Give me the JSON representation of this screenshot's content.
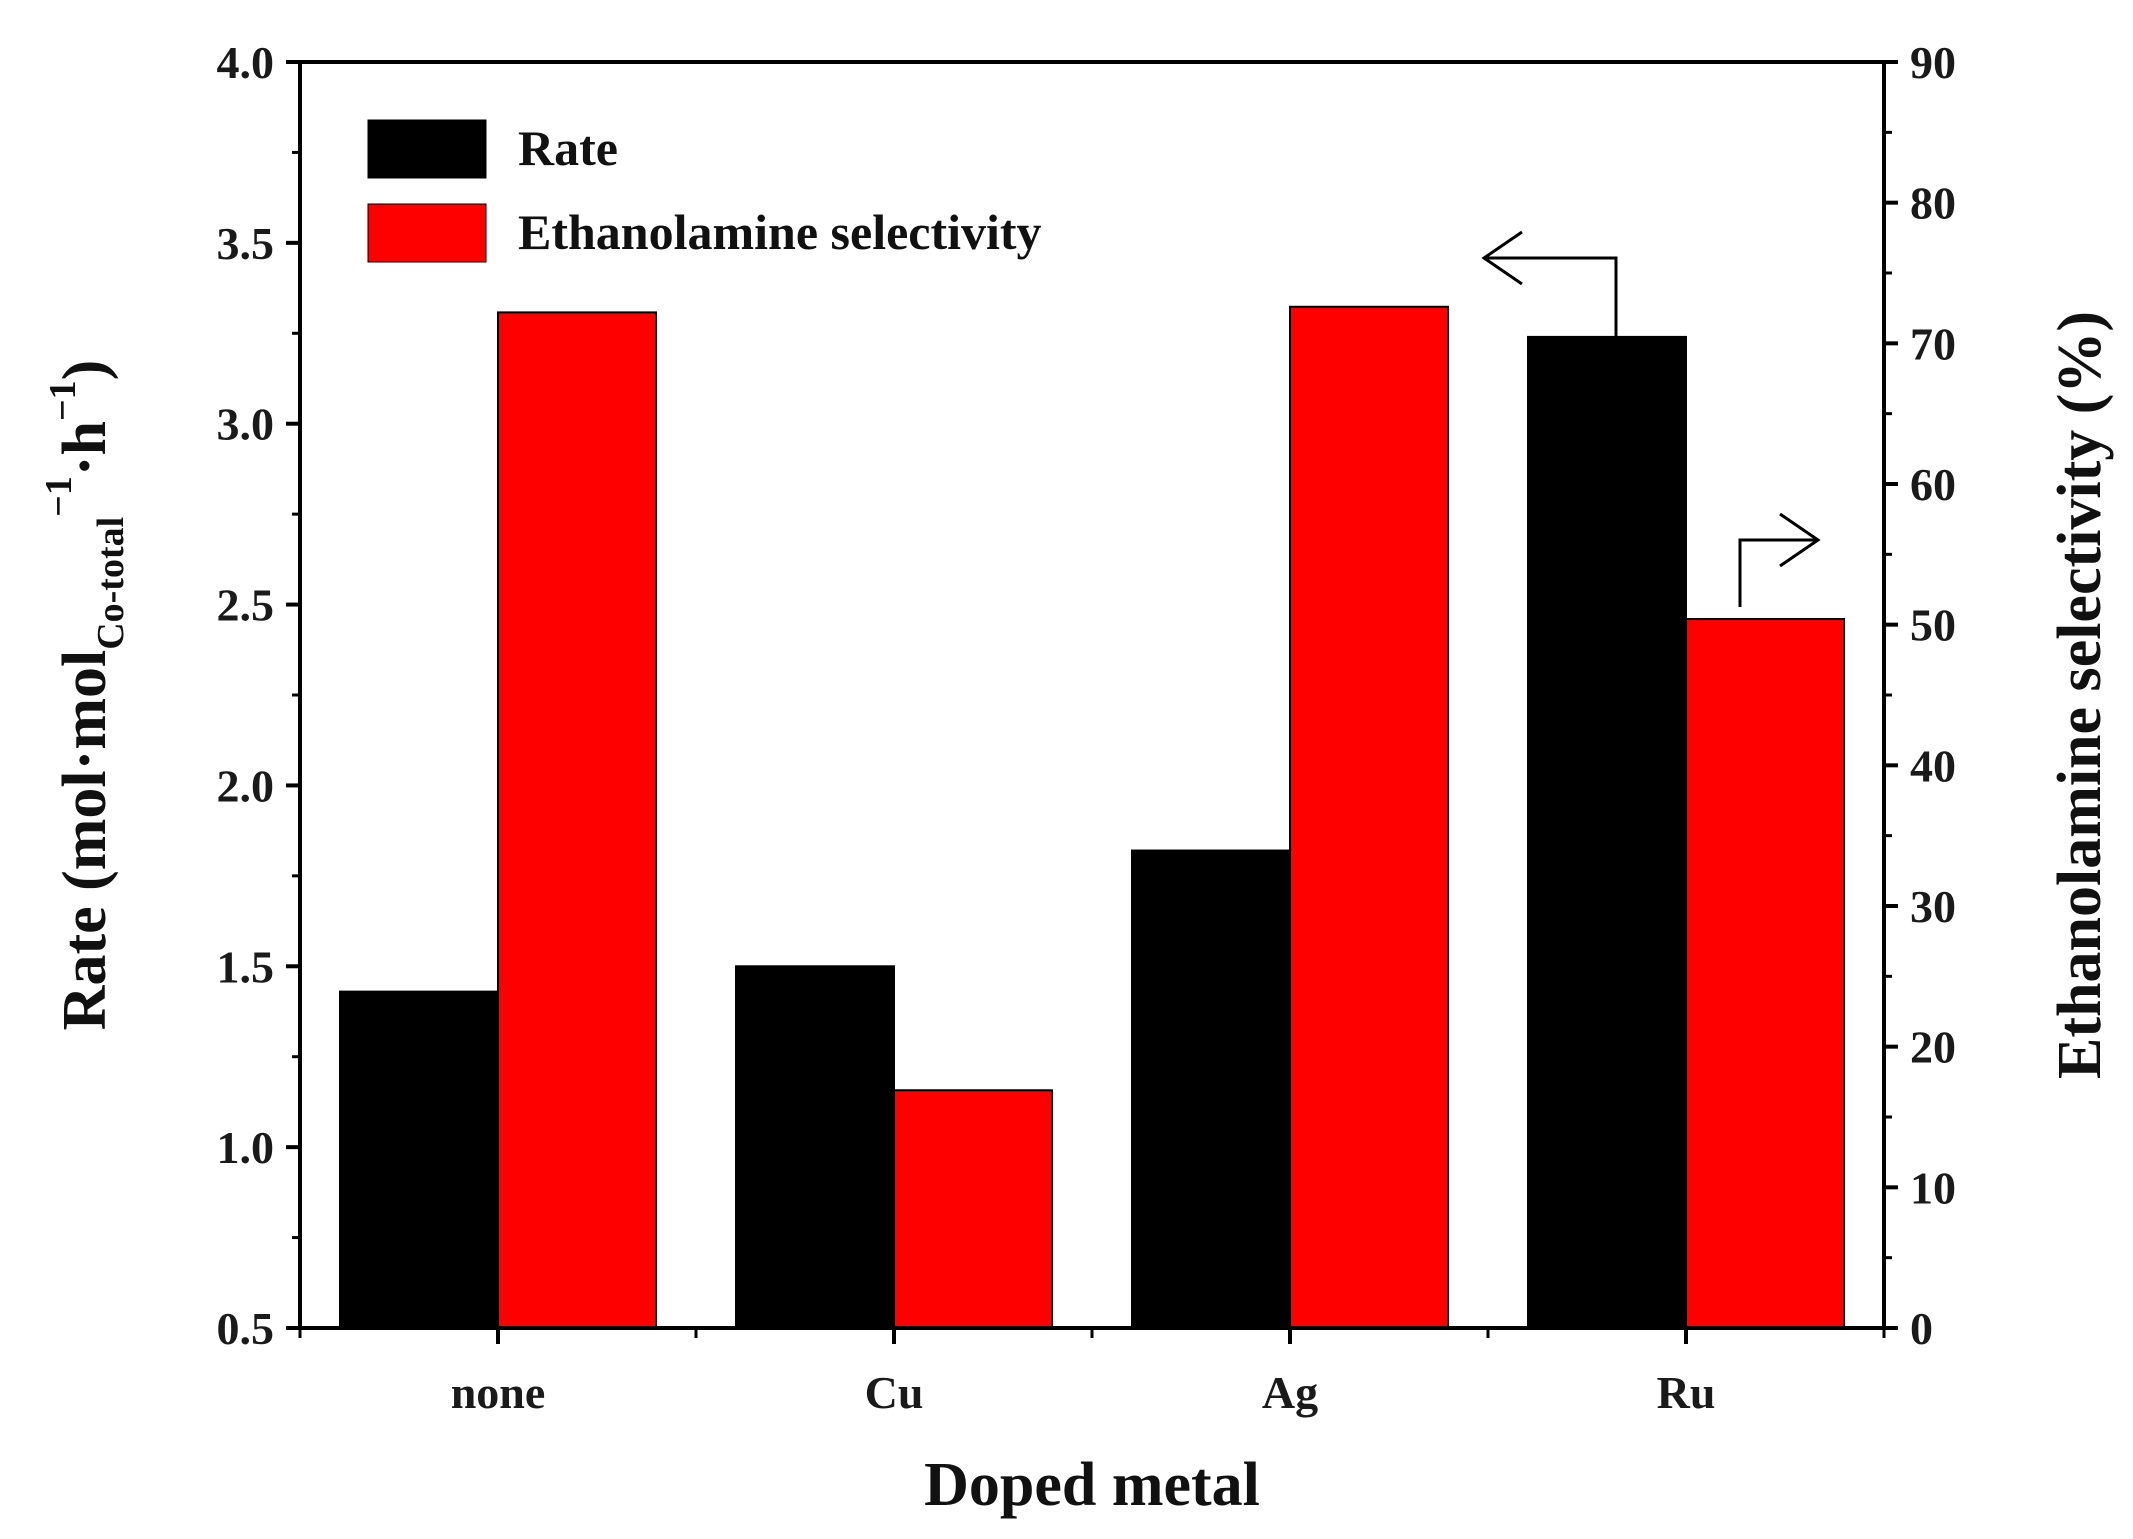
{
  "chart_data": {
    "type": "bar",
    "categories": [
      "none",
      "Cu",
      "Ag",
      "Ru"
    ],
    "series": [
      {
        "name": "Rate",
        "axis": "left",
        "color": "#000000",
        "values": [
          1.43,
          1.5,
          1.82,
          3.24
        ]
      },
      {
        "name": "Ethanolamine selectivity",
        "axis": "right",
        "color": "#ff0000",
        "values": [
          72.2,
          16.9,
          72.6,
          50.4
        ]
      }
    ],
    "xlabel": "Doped metal",
    "ylabel": {
      "main": "Rate (mol·mol",
      "subscript": "Co-total",
      "unit_part1": "−1",
      "middle": "·h",
      "unit_part2": "−1",
      "close": ")"
    },
    "y2label": "Ethanolamine selectivity (%)",
    "ylim": [
      0.5,
      4.0
    ],
    "yticks": [
      "0.5",
      "1.0",
      "1.5",
      "2.0",
      "2.5",
      "3.0",
      "3.5",
      "4.0"
    ],
    "y2lim": [
      0,
      90
    ],
    "y2ticks": [
      "0",
      "10",
      "20",
      "30",
      "40",
      "50",
      "60",
      "70",
      "80",
      "90"
    ],
    "legend": {
      "position": "top-left",
      "entries": [
        "Rate",
        "Ethanolamine selectivity"
      ]
    },
    "annotations": [
      {
        "type": "arrow",
        "points_to": "left axis",
        "attached_to": "Ru Rate bar"
      },
      {
        "type": "arrow",
        "points_to": "right axis",
        "attached_to": "Ru Ethanolamine selectivity bar"
      }
    ],
    "grid": false
  }
}
